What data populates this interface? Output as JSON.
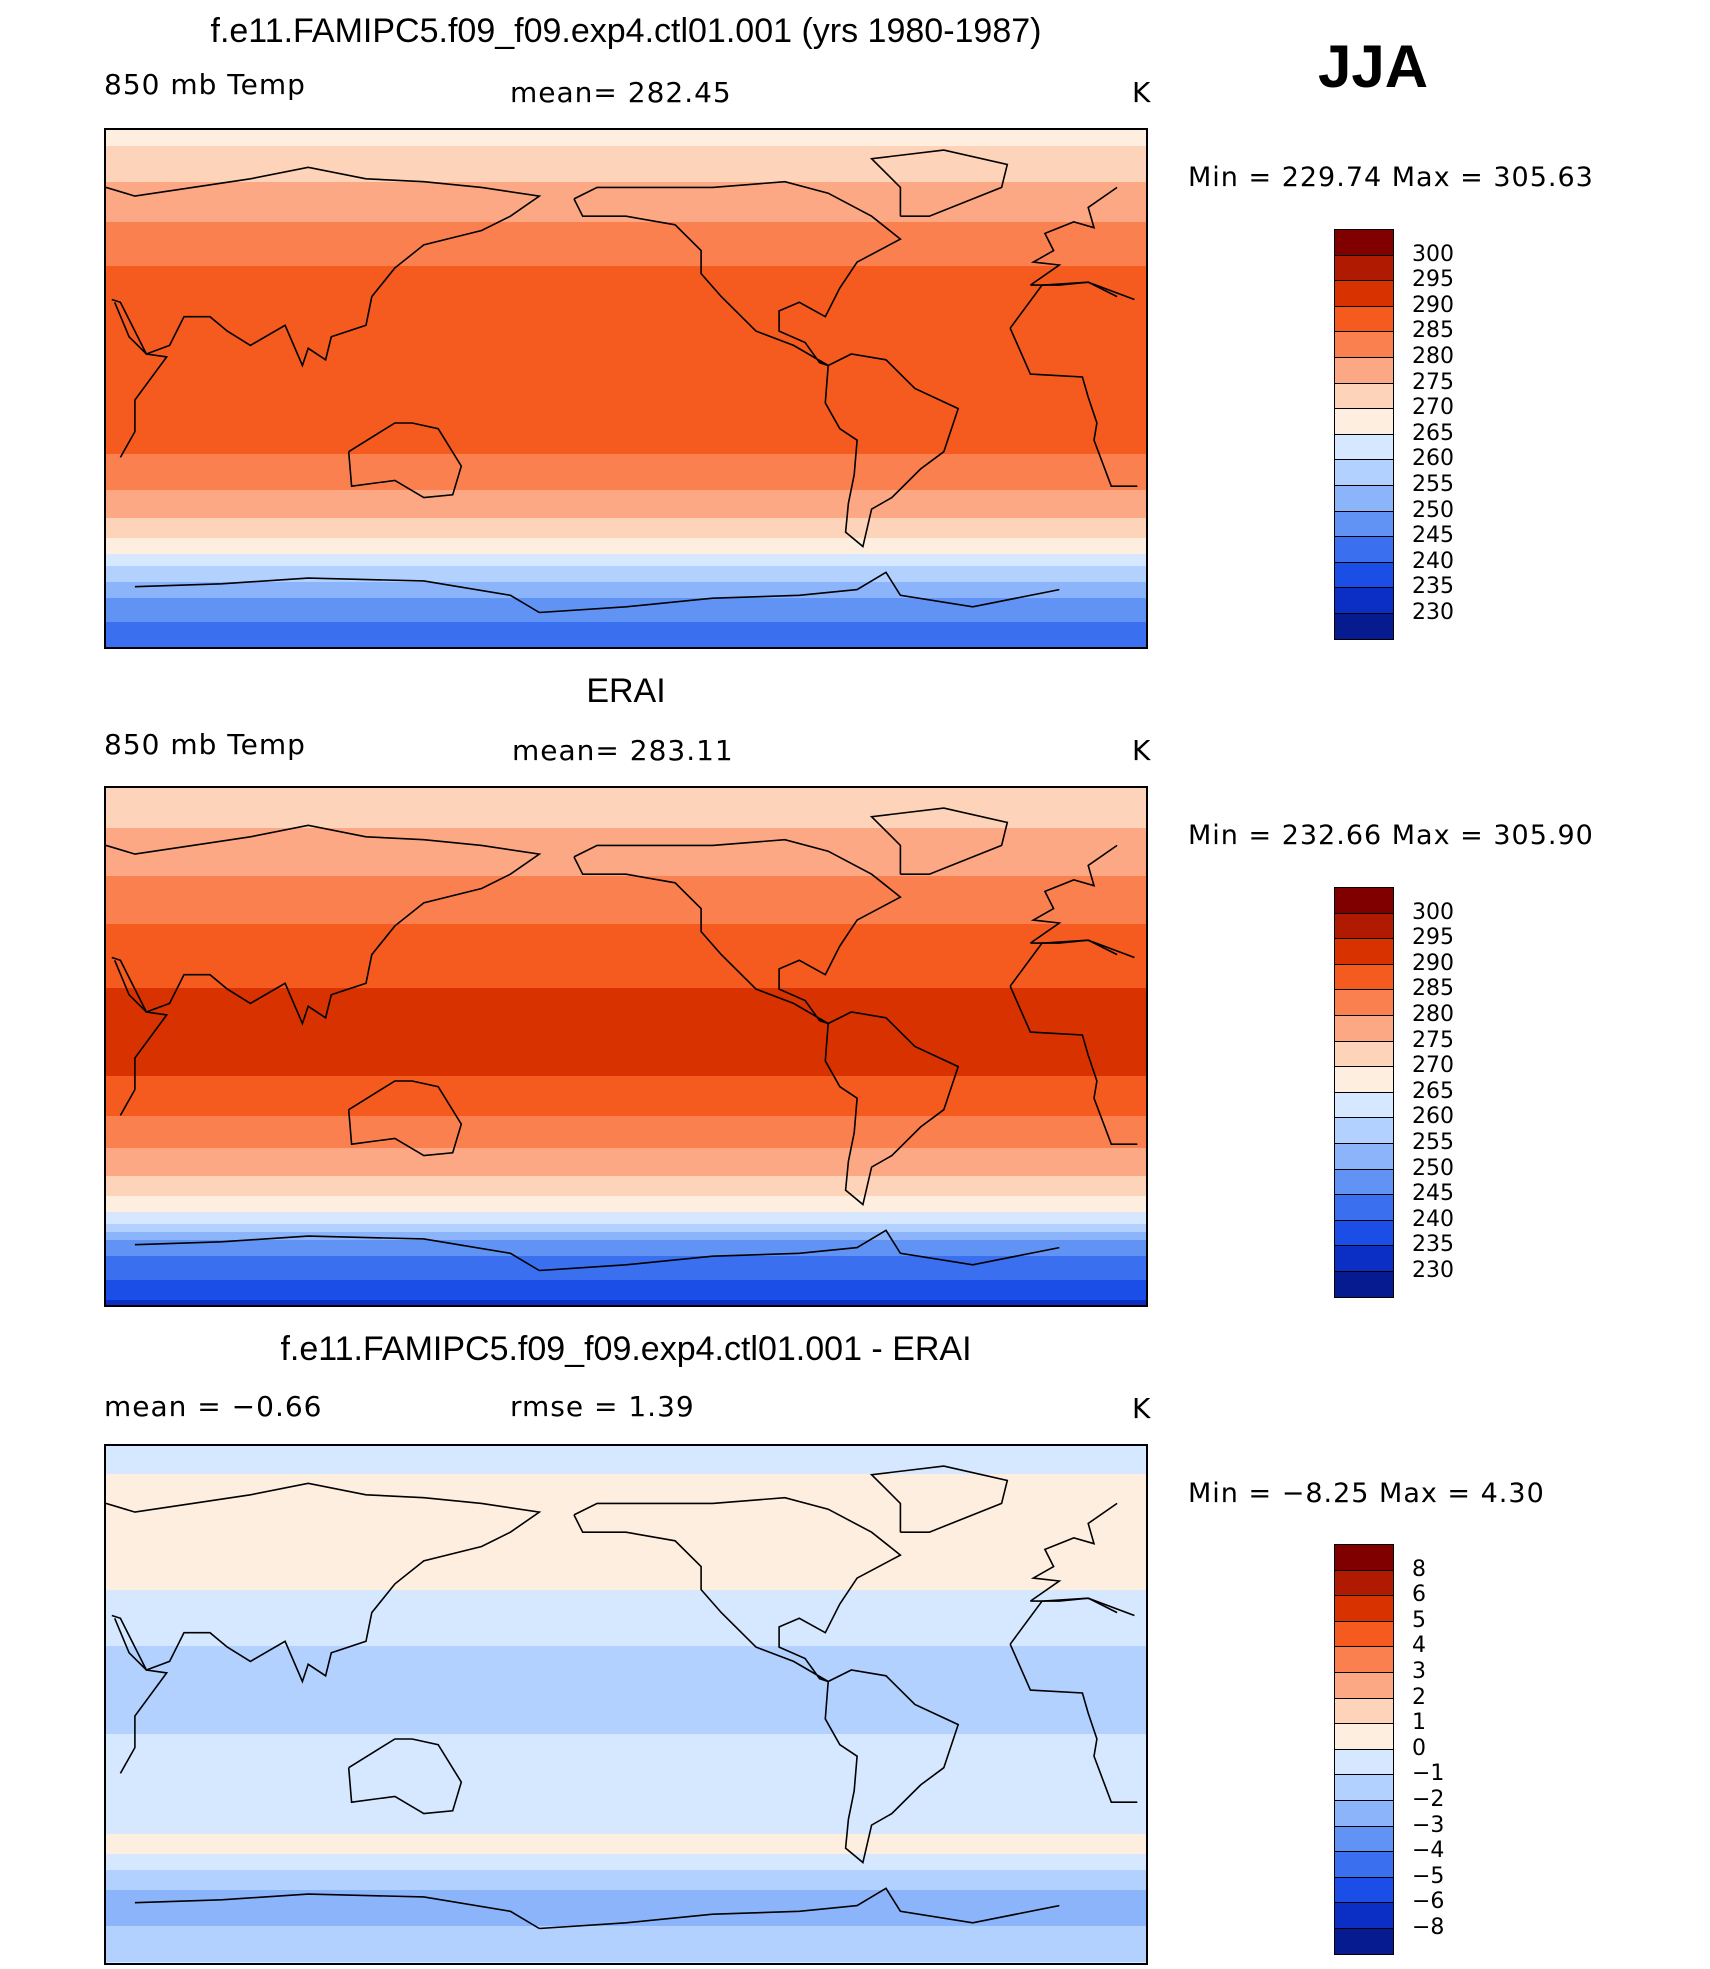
{
  "season": "JJA",
  "panels": [
    {
      "title": "f.e11.FAMIPC5.f09_f09.exp4.ctl01.001 (yrs 1980-1987)",
      "left_label": "850 mb Temp",
      "center_label": "mean=  282.45",
      "units": "K",
      "minmax": "Min  =  229.74  Max  =  305.63",
      "colorbar": {
        "colors": [
          "#800000",
          "#b01a00",
          "#d83200",
          "#f55a1e",
          "#fb8050",
          "#fca884",
          "#fdd3b9",
          "#fdeedf",
          "#d6e8ff",
          "#b3d1ff",
          "#8cb4fb",
          "#6193f5",
          "#3a6ff0",
          "#1a4ee6",
          "#0b2fc4",
          "#061b8f"
        ],
        "labels": [
          "300",
          "295",
          "290",
          "285",
          "280",
          "275",
          "270",
          "265",
          "260",
          "255",
          "250",
          "245",
          "240",
          "235",
          "230"
        ]
      }
    },
    {
      "title": "ERAI",
      "left_label": "850 mb Temp",
      "center_label": "mean=  283.11",
      "units": "K",
      "minmax": "Min  =  232.66  Max  =  305.90",
      "colorbar": {
        "colors": [
          "#800000",
          "#b01a00",
          "#d83200",
          "#f55a1e",
          "#fb8050",
          "#fca884",
          "#fdd3b9",
          "#fdeedf",
          "#d6e8ff",
          "#b3d1ff",
          "#8cb4fb",
          "#6193f5",
          "#3a6ff0",
          "#1a4ee6",
          "#0b2fc4",
          "#061b8f"
        ],
        "labels": [
          "300",
          "295",
          "290",
          "285",
          "280",
          "275",
          "270",
          "265",
          "260",
          "255",
          "250",
          "245",
          "240",
          "235",
          "230"
        ]
      }
    },
    {
      "title": "f.e11.FAMIPC5.f09_f09.exp4.ctl01.001 - ERAI",
      "left_label": "mean  =    −0.66",
      "center_label": "rmse  =     1.39",
      "units": "K",
      "minmax": "Min  =    −8.25  Max  =     4.30",
      "colorbar": {
        "colors": [
          "#800000",
          "#b01a00",
          "#d83200",
          "#f55a1e",
          "#fb8050",
          "#fca884",
          "#fdd3b9",
          "#fdeedf",
          "#d6e8ff",
          "#b3d1ff",
          "#8cb4fb",
          "#6193f5",
          "#3a6ff0",
          "#1a4ee6",
          "#0b2fc4",
          "#061b8f"
        ],
        "labels": [
          "8",
          "6",
          "5",
          "4",
          "3",
          "2",
          "1",
          "0",
          "−1",
          "−2",
          "−3",
          "−4",
          "−5",
          "−6",
          "−8"
        ]
      }
    }
  ],
  "chart_data": [
    {
      "type": "heatmap",
      "title": "f.e11.FAMIPC5.f09_f09.exp4.ctl01.001 (yrs 1980-1987)",
      "subtitle": "850 mb Temp",
      "units": "K",
      "mean": 282.45,
      "min": 229.74,
      "max": 305.63,
      "levels": [
        230,
        235,
        240,
        245,
        250,
        255,
        260,
        265,
        270,
        275,
        280,
        285,
        290,
        295,
        300
      ],
      "zonal_profile": {
        "lat": [
          90,
          70,
          50,
          30,
          10,
          -10,
          -30,
          -50,
          -60,
          -70,
          -90
        ],
        "value": [
          268,
          276,
          283,
          288,
          290,
          289,
          283,
          272,
          262,
          252,
          240
        ]
      }
    },
    {
      "type": "heatmap",
      "title": "ERAI",
      "subtitle": "850 mb Temp",
      "units": "K",
      "mean": 283.11,
      "min": 232.66,
      "max": 305.9,
      "levels": [
        230,
        235,
        240,
        245,
        250,
        255,
        260,
        265,
        270,
        275,
        280,
        285,
        290,
        295,
        300
      ],
      "zonal_profile": {
        "lat": [
          90,
          70,
          50,
          30,
          10,
          -10,
          -30,
          -50,
          -60,
          -70,
          -90
        ],
        "value": [
          270,
          277,
          283,
          289,
          291,
          290,
          283,
          272,
          262,
          247,
          234
        ]
      }
    },
    {
      "type": "heatmap",
      "title": "f.e11.FAMIPC5.f09_f09.exp4.ctl01.001 - ERAI",
      "units": "K",
      "mean": -0.66,
      "rmse": 1.39,
      "min": -8.25,
      "max": 4.3,
      "levels": [
        -8,
        -6,
        -5,
        -4,
        -3,
        -2,
        -1,
        0,
        1,
        2,
        3,
        4,
        5,
        6,
        8
      ],
      "zonal_profile": {
        "lat": [
          90,
          70,
          50,
          30,
          10,
          -10,
          -30,
          -50,
          -60,
          -70,
          -90
        ],
        "value": [
          -0.5,
          0.5,
          0.8,
          -0.8,
          -1.2,
          -1.0,
          -1.0,
          0.3,
          -1.5,
          -2.5,
          -1.0
        ]
      }
    }
  ]
}
